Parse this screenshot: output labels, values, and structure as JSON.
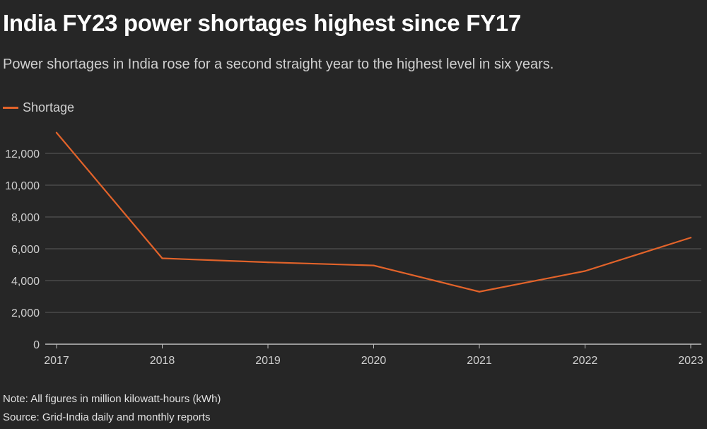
{
  "title": "India FY23 power shortages highest since FY17",
  "subtitle": "Power shortages in India rose for a second straight year to the highest level in six years.",
  "colors": {
    "background": "#262626",
    "line": "#e2632a",
    "grid": "#5c5c5c",
    "axis": "#bfbfbf",
    "text": "#cfcfcf"
  },
  "chart_data": {
    "type": "line",
    "x": [
      "2017",
      "2018",
      "2019",
      "2020",
      "2021",
      "2022",
      "2023"
    ],
    "series": [
      {
        "name": "Shortage",
        "values": [
          13300,
          5400,
          5150,
          4950,
          3300,
          4600,
          6700
        ]
      }
    ],
    "ylim": [
      0,
      13300
    ],
    "yticks": [
      "0",
      "2,000",
      "4,000",
      "6,000",
      "8,000",
      "10,000",
      "12,000"
    ],
    "ytick_values": [
      0,
      2000,
      4000,
      6000,
      8000,
      10000,
      12000
    ],
    "grid": true,
    "legend": "top-left"
  },
  "notes": {
    "note": "Note: All figures in million kilowatt-hours (kWh)",
    "source": "Source: Grid-India daily and monthly reports"
  }
}
